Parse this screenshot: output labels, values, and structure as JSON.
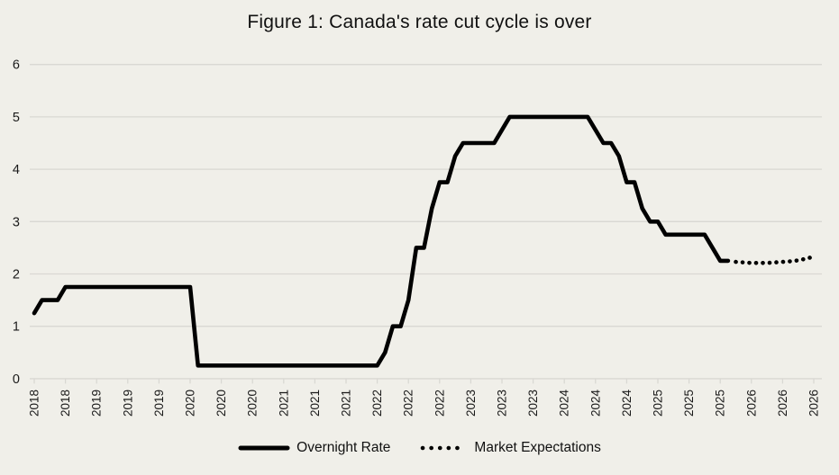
{
  "chart_data": {
    "type": "line",
    "title": "Figure 1: Canada's rate cut cycle is over",
    "xlabel": "",
    "ylabel": "",
    "ylim": [
      0,
      6
    ],
    "y_ticks": [
      0,
      1,
      2,
      3,
      4,
      5,
      6
    ],
    "grid": "horizontal",
    "legend_position": "bottom-center",
    "x_axis": {
      "start": "2018-06",
      "end": "2026-10",
      "tick_every_months": 4
    },
    "x_tick_labels": [
      "2018",
      "2018",
      "2019",
      "2019",
      "2019",
      "2020",
      "2020",
      "2020",
      "2021",
      "2021",
      "2021",
      "2022",
      "2022",
      "2022",
      "2023",
      "2023",
      "2023",
      "2024",
      "2024",
      "2024",
      "2025",
      "2025",
      "2025",
      "2026",
      "2026",
      "2026"
    ],
    "colors": {
      "background": "#f0efe9",
      "grid": "#d9d8d3",
      "line": "#000000",
      "text": "#1a1a1a"
    },
    "series": [
      {
        "name": "Overnight Rate",
        "style": "solid",
        "steps": [
          {
            "value": 1.25,
            "from": "2018-06",
            "to": "2018-06"
          },
          {
            "value": 1.5,
            "from": "2018-07",
            "to": "2018-09"
          },
          {
            "value": 1.75,
            "from": "2018-10",
            "to": "2020-02"
          },
          {
            "value": 0.25,
            "from": "2020-03",
            "to": "2022-02"
          },
          {
            "value": 0.5,
            "from": "2022-03",
            "to": "2022-03"
          },
          {
            "value": 1.0,
            "from": "2022-04",
            "to": "2022-05"
          },
          {
            "value": 1.5,
            "from": "2022-06",
            "to": "2022-06"
          },
          {
            "value": 2.5,
            "from": "2022-07",
            "to": "2022-08"
          },
          {
            "value": 3.25,
            "from": "2022-09",
            "to": "2022-09"
          },
          {
            "value": 3.75,
            "from": "2022-10",
            "to": "2022-11"
          },
          {
            "value": 4.25,
            "from": "2022-12",
            "to": "2022-12"
          },
          {
            "value": 4.5,
            "from": "2023-01",
            "to": "2023-05"
          },
          {
            "value": 4.75,
            "from": "2023-06",
            "to": "2023-06"
          },
          {
            "value": 5.0,
            "from": "2023-07",
            "to": "2024-05"
          },
          {
            "value": 4.75,
            "from": "2024-06",
            "to": "2024-06"
          },
          {
            "value": 4.5,
            "from": "2024-07",
            "to": "2024-08"
          },
          {
            "value": 4.25,
            "from": "2024-09",
            "to": "2024-09"
          },
          {
            "value": 3.75,
            "from": "2024-10",
            "to": "2024-11"
          },
          {
            "value": 3.25,
            "from": "2024-12",
            "to": "2024-12"
          },
          {
            "value": 3.0,
            "from": "2025-01",
            "to": "2025-02"
          },
          {
            "value": 2.75,
            "from": "2025-03",
            "to": "2025-08"
          },
          {
            "value": 2.5,
            "from": "2025-09",
            "to": "2025-09"
          },
          {
            "value": 2.25,
            "from": "2025-10",
            "to": "2025-11"
          }
        ]
      },
      {
        "name": "Market Expectations",
        "style": "dotted",
        "points": [
          [
            "2025-12",
            2.23
          ],
          [
            "2026-01",
            2.22
          ],
          [
            "2026-02",
            2.21
          ],
          [
            "2026-03",
            2.21
          ],
          [
            "2026-04",
            2.21
          ],
          [
            "2026-05",
            2.22
          ],
          [
            "2026-06",
            2.23
          ],
          [
            "2026-07",
            2.24
          ],
          [
            "2026-08",
            2.26
          ],
          [
            "2026-09",
            2.29
          ],
          [
            "2026-10",
            2.33
          ]
        ]
      }
    ]
  }
}
